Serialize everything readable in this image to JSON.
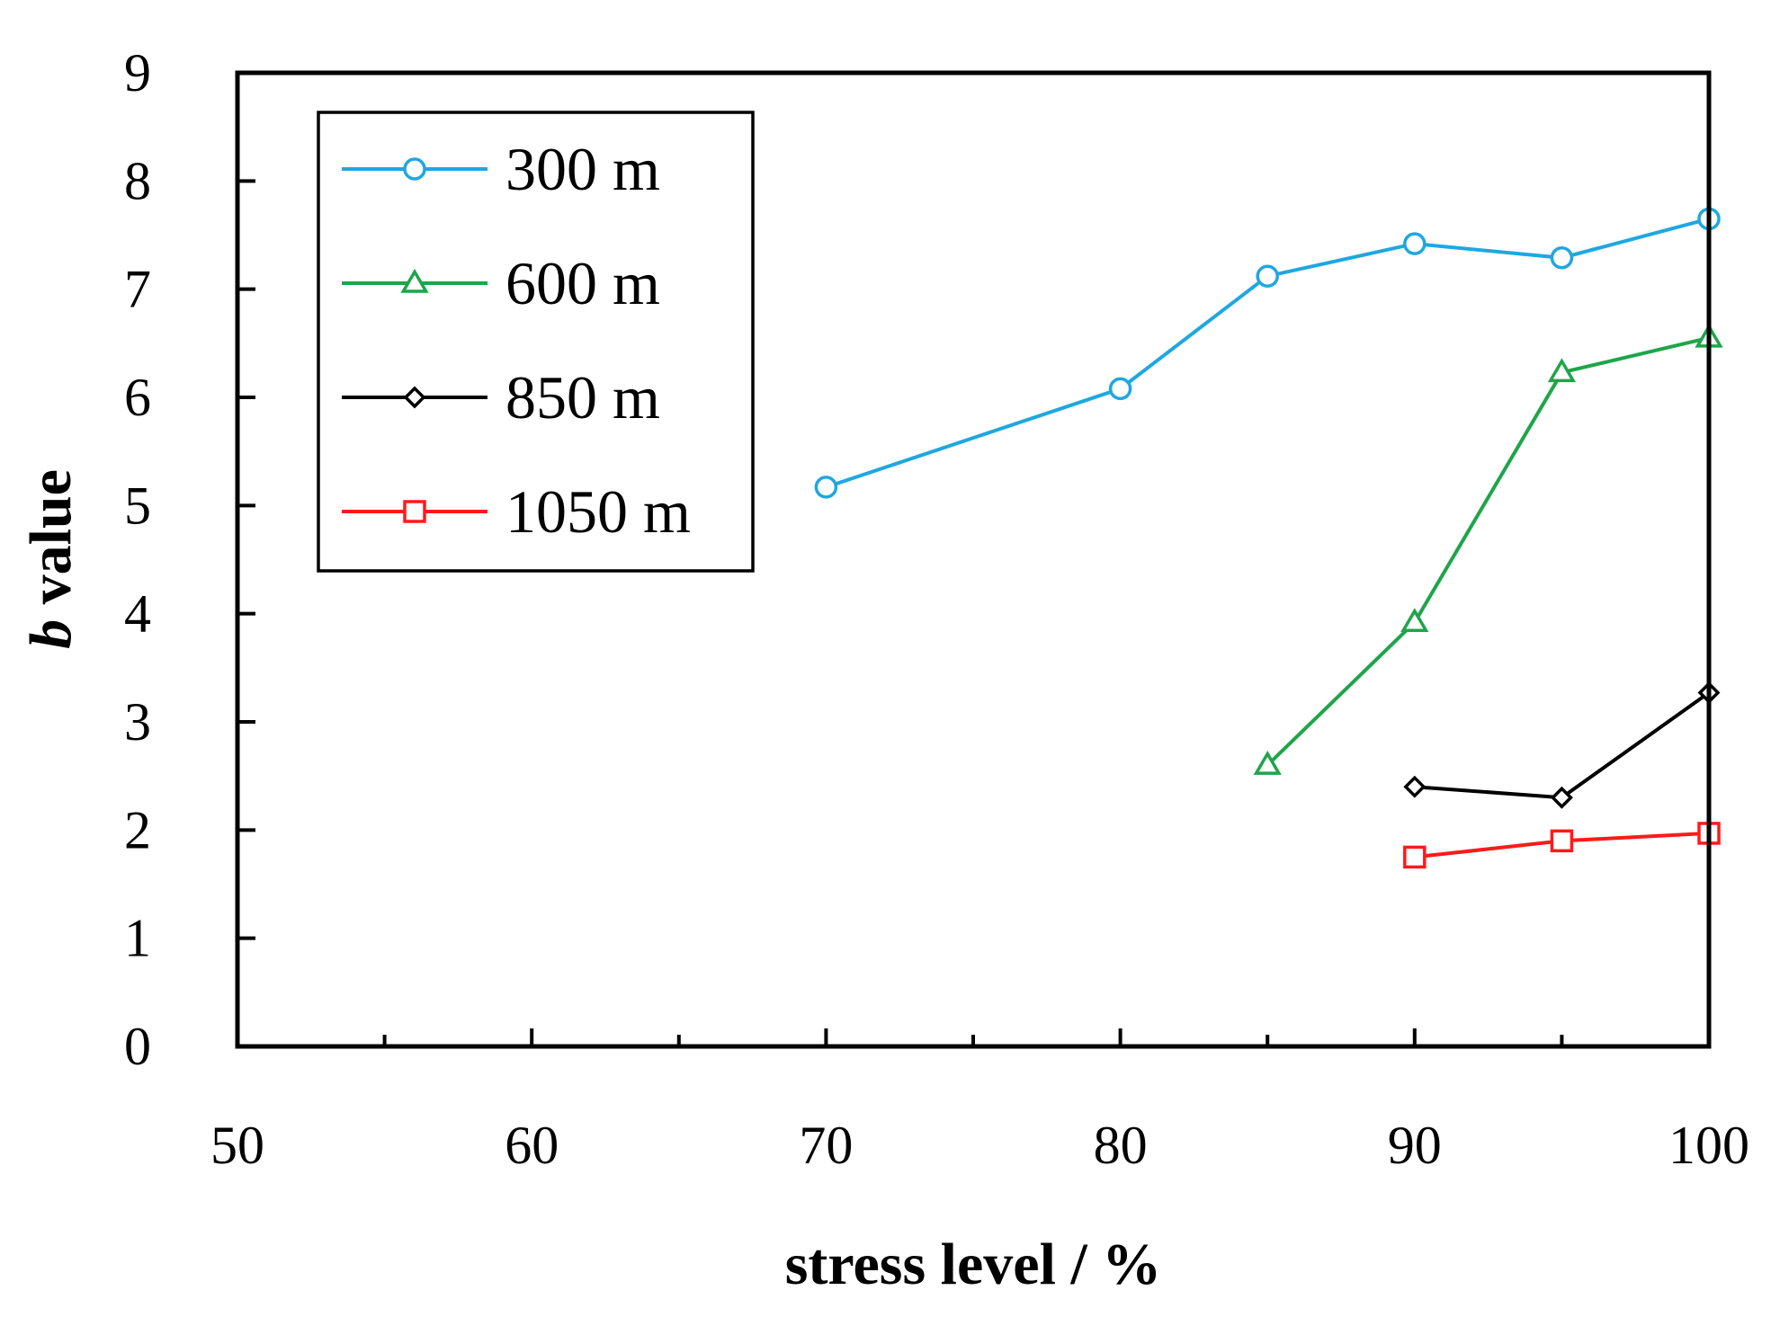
{
  "chart_data": {
    "type": "line",
    "title": "",
    "xlabel": "stress level / %",
    "ylabel_italic": "b",
    "ylabel_rest": " value",
    "xlim": [
      50,
      100
    ],
    "ylim": [
      0,
      9
    ],
    "x_ticks": [
      50,
      60,
      70,
      80,
      90,
      100
    ],
    "x_ticks_labels": [
      "50",
      "60",
      "70",
      "80",
      "90",
      "100"
    ],
    "x_minor_ticks": [
      55,
      65,
      75,
      85,
      95
    ],
    "y_ticks": [
      0,
      1,
      2,
      3,
      4,
      5,
      6,
      7,
      8,
      9
    ],
    "y_ticks_labels": [
      "0",
      "1",
      "2",
      "3",
      "4",
      "5",
      "6",
      "7",
      "8",
      "9"
    ],
    "grid": false,
    "legend_position": "top-left",
    "series": [
      {
        "name": "300 m",
        "color": "#1fa7e1",
        "marker": "circle",
        "x": [
          70,
          80,
          85,
          90,
          95,
          100
        ],
        "y": [
          5.17,
          6.08,
          7.12,
          7.42,
          7.29,
          7.65
        ]
      },
      {
        "name": "600 m",
        "color": "#1ea54a",
        "marker": "triangle",
        "x": [
          85,
          90,
          95,
          100
        ],
        "y": [
          2.6,
          3.92,
          6.23,
          6.55
        ]
      },
      {
        "name": "850 m",
        "color": "#000000",
        "marker": "diamond",
        "x": [
          90,
          95,
          100
        ],
        "y": [
          2.4,
          2.3,
          3.27
        ]
      },
      {
        "name": "1050 m",
        "color": "#ff1a1a",
        "marker": "square",
        "x": [
          90,
          95,
          100
        ],
        "y": [
          1.75,
          1.9,
          1.97
        ]
      }
    ]
  }
}
